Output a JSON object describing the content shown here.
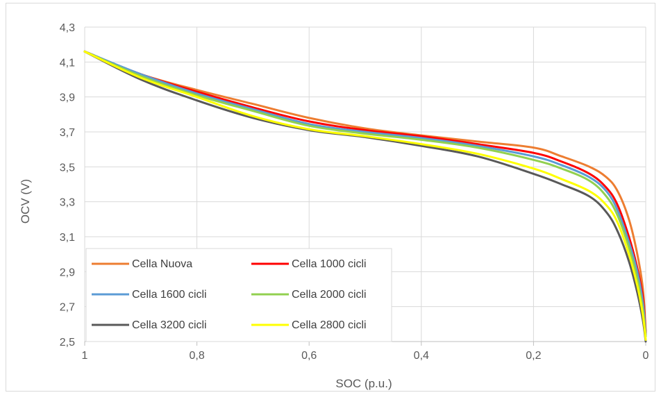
{
  "chart_data": {
    "type": "line",
    "title": "",
    "xlabel": "SOC (p.u.)",
    "ylabel": "OCV (V)",
    "xlim": [
      1,
      0
    ],
    "ylim": [
      2.5,
      4.3
    ],
    "x_reversed": true,
    "grid": true,
    "legend_placement": "bottom-left",
    "x_ticks": [
      1,
      0.8,
      0.6,
      0.4,
      0.2,
      0
    ],
    "x_tick_labels": [
      "1",
      "0,8",
      "0,6",
      "0,4",
      "0,2",
      "0"
    ],
    "y_ticks": [
      2.5,
      2.7,
      2.9,
      3.1,
      3.3,
      3.5,
      3.7,
      3.9,
      4.1,
      4.3
    ],
    "y_tick_labels": [
      "2,5",
      "2,7",
      "2,9",
      "3,1",
      "3,3",
      "3,5",
      "3,7",
      "3,9",
      "4,1",
      "4,3"
    ],
    "series": [
      {
        "name": "Cella Nuova",
        "color": "#ED7D31",
        "points": [
          [
            1,
            4.16
          ],
          [
            0.9,
            4.03
          ],
          [
            0.8,
            3.94
          ],
          [
            0.7,
            3.86
          ],
          [
            0.6,
            3.78
          ],
          [
            0.5,
            3.72
          ],
          [
            0.4,
            3.68
          ],
          [
            0.3,
            3.645
          ],
          [
            0.2,
            3.61
          ],
          [
            0.15,
            3.56
          ],
          [
            0.1,
            3.5
          ],
          [
            0.07,
            3.44
          ],
          [
            0.05,
            3.36
          ],
          [
            0.03,
            3.2
          ],
          [
            0.015,
            3.0
          ],
          [
            0.005,
            2.8
          ],
          [
            0,
            2.56
          ]
        ]
      },
      {
        "name": "Cella 1000 cicli",
        "color": "#FF0000",
        "points": [
          [
            1,
            4.16
          ],
          [
            0.9,
            4.03
          ],
          [
            0.8,
            3.93
          ],
          [
            0.7,
            3.84
          ],
          [
            0.6,
            3.76
          ],
          [
            0.5,
            3.71
          ],
          [
            0.4,
            3.675
          ],
          [
            0.3,
            3.63
          ],
          [
            0.2,
            3.58
          ],
          [
            0.15,
            3.53
          ],
          [
            0.1,
            3.46
          ],
          [
            0.07,
            3.38
          ],
          [
            0.05,
            3.28
          ],
          [
            0.03,
            3.1
          ],
          [
            0.015,
            2.92
          ],
          [
            0.005,
            2.75
          ],
          [
            0,
            2.55
          ]
        ]
      },
      {
        "name": "Cella 1600 cicli",
        "color": "#5B9BD5",
        "points": [
          [
            1,
            4.16
          ],
          [
            0.9,
            4.03
          ],
          [
            0.8,
            3.92
          ],
          [
            0.7,
            3.83
          ],
          [
            0.6,
            3.745
          ],
          [
            0.5,
            3.7
          ],
          [
            0.4,
            3.665
          ],
          [
            0.3,
            3.62
          ],
          [
            0.2,
            3.56
          ],
          [
            0.15,
            3.51
          ],
          [
            0.1,
            3.44
          ],
          [
            0.07,
            3.36
          ],
          [
            0.05,
            3.25
          ],
          [
            0.03,
            3.07
          ],
          [
            0.015,
            2.9
          ],
          [
            0.005,
            2.72
          ],
          [
            0,
            2.54
          ]
        ]
      },
      {
        "name": "Cella 2000 cicli",
        "color": "#92D050",
        "points": [
          [
            1,
            4.16
          ],
          [
            0.9,
            4.02
          ],
          [
            0.8,
            3.91
          ],
          [
            0.7,
            3.82
          ],
          [
            0.6,
            3.735
          ],
          [
            0.5,
            3.69
          ],
          [
            0.4,
            3.655
          ],
          [
            0.3,
            3.61
          ],
          [
            0.2,
            3.54
          ],
          [
            0.15,
            3.49
          ],
          [
            0.1,
            3.42
          ],
          [
            0.07,
            3.33
          ],
          [
            0.05,
            3.22
          ],
          [
            0.03,
            3.04
          ],
          [
            0.015,
            2.86
          ],
          [
            0.005,
            2.68
          ],
          [
            0,
            2.53
          ]
        ]
      },
      {
        "name": "Cella 3200 cicli",
        "color": "#595959",
        "points": [
          [
            1,
            4.16
          ],
          [
            0.9,
            4.0
          ],
          [
            0.8,
            3.88
          ],
          [
            0.7,
            3.78
          ],
          [
            0.6,
            3.71
          ],
          [
            0.5,
            3.67
          ],
          [
            0.4,
            3.62
          ],
          [
            0.3,
            3.56
          ],
          [
            0.2,
            3.46
          ],
          [
            0.15,
            3.4
          ],
          [
            0.1,
            3.33
          ],
          [
            0.07,
            3.24
          ],
          [
            0.05,
            3.13
          ],
          [
            0.03,
            2.96
          ],
          [
            0.015,
            2.78
          ],
          [
            0.005,
            2.62
          ],
          [
            0,
            2.5
          ]
        ]
      },
      {
        "name": "Cella 2800 cicli",
        "color": "#FFFF00",
        "points": [
          [
            1,
            4.16
          ],
          [
            0.9,
            4.01
          ],
          [
            0.8,
            3.9
          ],
          [
            0.7,
            3.79
          ],
          [
            0.6,
            3.715
          ],
          [
            0.5,
            3.675
          ],
          [
            0.4,
            3.63
          ],
          [
            0.3,
            3.575
          ],
          [
            0.2,
            3.49
          ],
          [
            0.15,
            3.43
          ],
          [
            0.1,
            3.36
          ],
          [
            0.07,
            3.28
          ],
          [
            0.05,
            3.18
          ],
          [
            0.03,
            3.0
          ],
          [
            0.015,
            2.82
          ],
          [
            0.005,
            2.65
          ],
          [
            0,
            2.51
          ]
        ]
      }
    ]
  }
}
